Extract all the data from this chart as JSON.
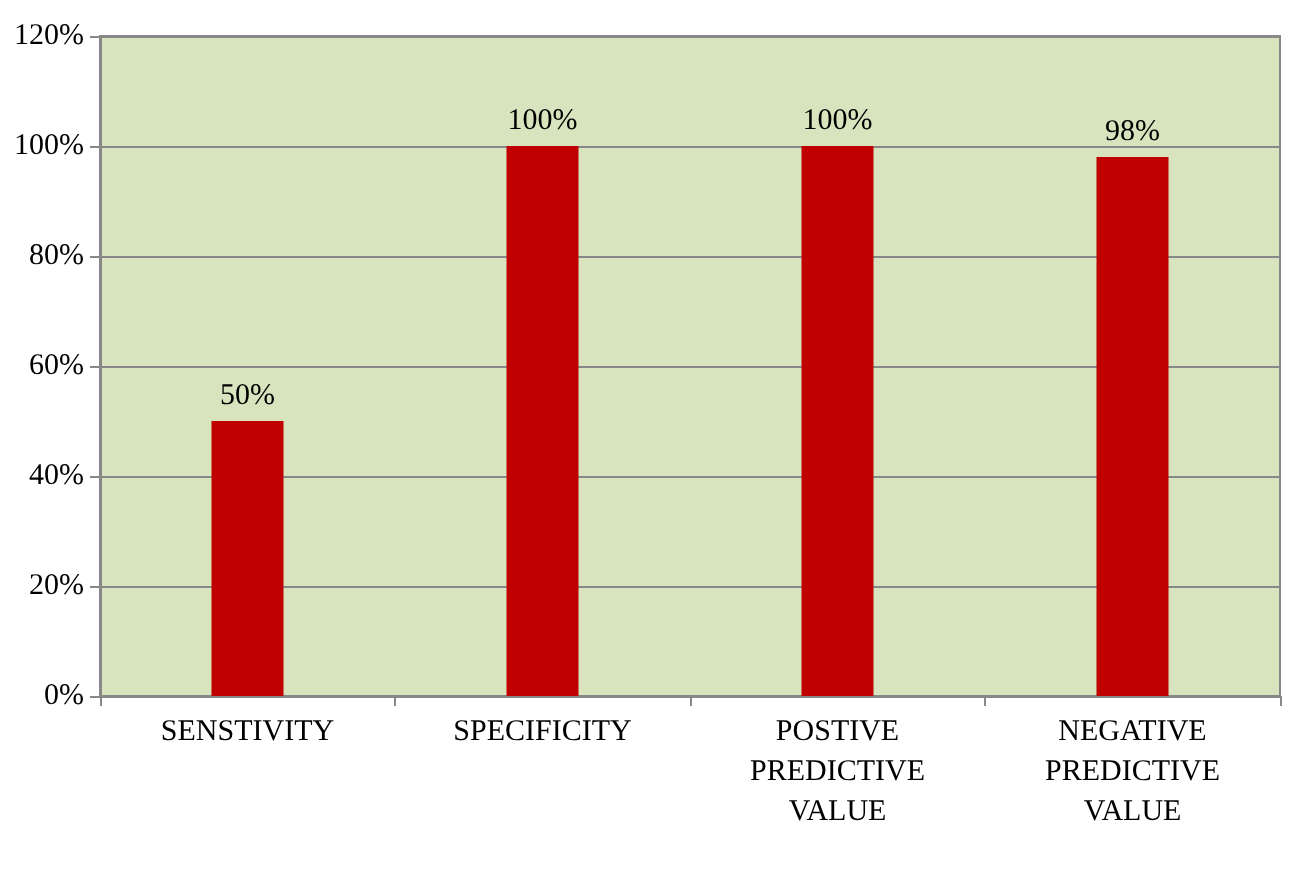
{
  "chart_data": {
    "type": "bar",
    "categories": [
      "SENSTIVITY",
      "SPECIFICITY",
      "POSTIVE PREDICTIVE VALUE",
      "NEGATIVE PREDICTIVE VALUE"
    ],
    "values": [
      50,
      100,
      100,
      98
    ],
    "value_labels": [
      "50%",
      "100%",
      "100%",
      "98%"
    ],
    "color": "#c00000",
    "ylim": [
      0,
      120
    ],
    "yticks": [
      {
        "value": 0,
        "label": "0%"
      },
      {
        "value": 20,
        "label": "20%"
      },
      {
        "value": 40,
        "label": "40%"
      },
      {
        "value": 60,
        "label": "60%"
      },
      {
        "value": 80,
        "label": "80%"
      },
      {
        "value": 100,
        "label": "100%"
      },
      {
        "value": 120,
        "label": "120%"
      }
    ],
    "grid": "y"
  }
}
